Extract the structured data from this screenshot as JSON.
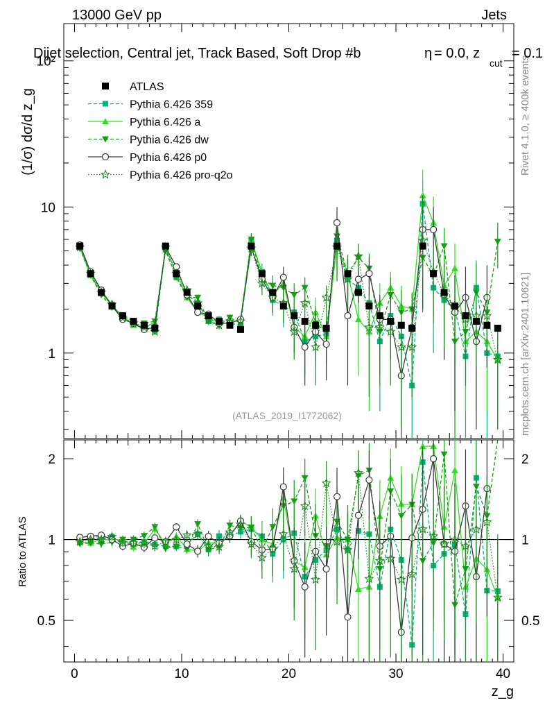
{
  "header": {
    "left": "13000 GeV pp",
    "right": "Jets",
    "selection": "Dijet selection, Central jet, Track Based, Soft Drop #b",
    "eta_part": "= 0.0, z",
    "cut_sub": "cut",
    "cut_value": "= 0.1",
    "beta_symbol": "η"
  },
  "side_labels": {
    "rivet": "Rivet 4.1.0, ≥ 400k events",
    "mcplots": "mcplots.cern.ch [arXiv:2401.10621]"
  },
  "watermark": "(ATLAS_2019_I1772062)",
  "colors": {
    "atlas": "#000000",
    "p359": "#00b37a",
    "a": "#33dd22",
    "dw": "#11a011",
    "p0": "#3a3a3a",
    "proq2o": "#1f8a1f"
  },
  "chart_data": {
    "type": "line",
    "title": "Dijet selection, Central jet, Track Based, Soft Drop #b = 0.0, z_cut = 0.1",
    "xlabel": "z_g",
    "ylabel": "(1/σ) dσ/d z_g",
    "ratio_ylabel": "Ratio to ATLAS",
    "xlim": [
      -1,
      41
    ],
    "main_ylim": [
      0.26,
      180
    ],
    "main_yscale": "log",
    "ratio_ylim": [
      0.35,
      2.35
    ],
    "ratio_yscale": "log",
    "x_ticks": [
      0,
      10,
      20,
      30,
      40
    ],
    "x_tick_labels": [
      "0",
      "10",
      "20",
      "30",
      "40"
    ],
    "main_y_ticks": [
      1,
      10,
      100
    ],
    "main_y_tick_labels": [
      "1",
      "10",
      "10²"
    ],
    "ratio_y_ticks": [
      0.5,
      1,
      2
    ],
    "ratio_y_tick_labels": [
      "0.5",
      "1",
      "2"
    ],
    "x": [
      0.5,
      1.5,
      2.5,
      3.5,
      4.5,
      5.5,
      6.5,
      7.5,
      8.5,
      9.5,
      10.5,
      11.5,
      12.5,
      13.5,
      14.5,
      15.5,
      16.5,
      17.5,
      18.5,
      19.5,
      20.5,
      21.5,
      22.5,
      23.5,
      24.5,
      25.5,
      26.5,
      27.5,
      28.5,
      29.5,
      30.5,
      31.5,
      32.5,
      33.5,
      34.5,
      35.5,
      36.5,
      37.5,
      38.5,
      39.5
    ],
    "atlas": {
      "name": "ATLAS",
      "values": [
        5.4,
        3.5,
        2.6,
        2.1,
        1.8,
        1.65,
        1.55,
        1.48,
        5.4,
        3.5,
        2.6,
        2.1,
        1.8,
        1.65,
        1.55,
        1.45,
        5.4,
        3.5,
        2.6,
        2.1,
        1.8,
        1.65,
        1.55,
        1.48,
        5.4,
        3.5,
        2.6,
        2.1,
        1.8,
        1.65,
        1.55,
        1.48,
        5.4,
        3.5,
        2.6,
        2.1,
        1.8,
        1.65,
        1.55,
        1.48
      ],
      "errors": [
        0.15,
        0.1,
        0.08,
        0.06,
        0.05,
        0.05,
        0.05,
        0.05,
        0.15,
        0.1,
        0.08,
        0.06,
        0.05,
        0.05,
        0.05,
        0.05,
        0.2,
        0.12,
        0.09,
        0.07,
        0.06,
        0.06,
        0.06,
        0.06,
        0.25,
        0.14,
        0.1,
        0.08,
        0.07,
        0.07,
        0.07,
        0.07,
        0.3,
        0.16,
        0.12,
        0.1,
        0.08,
        0.08,
        0.08,
        0.08
      ]
    },
    "series": [
      {
        "key": "p359",
        "name": "Pythia 6.426 359",
        "linestyle": "dashed",
        "marker": "square",
        "values": [
          5.5,
          3.6,
          2.65,
          2.15,
          1.75,
          1.6,
          1.52,
          1.42,
          5.1,
          3.3,
          2.5,
          2.2,
          1.65,
          1.7,
          1.6,
          1.55,
          5.9,
          3.6,
          2.3,
          2.1,
          1.9,
          1.2,
          1.3,
          1.35,
          5.9,
          3.2,
          2.8,
          2.2,
          1.2,
          1.8,
          1.3,
          0.6,
          10.5,
          2.8,
          2.3,
          2.0,
          0.95,
          2.8,
          1.0,
          0.95
        ],
        "errors": [
          0.12,
          0.1,
          0.08,
          0.07,
          0.06,
          0.06,
          0.06,
          0.06,
          0.15,
          0.12,
          0.1,
          0.1,
          0.09,
          0.09,
          0.09,
          0.09,
          0.6,
          0.5,
          0.5,
          0.6,
          0.5,
          0.5,
          0.5,
          0.5,
          2.2,
          1.2,
          1.0,
          1.0,
          0.8,
          0.8,
          0.8,
          0.6,
          5.0,
          1.8,
          1.4,
          1.2,
          0.8,
          1.5,
          0.8,
          0.6
        ]
      },
      {
        "key": "a",
        "name": "Pythia 6.426 a",
        "linestyle": "solid",
        "marker": "triangle-up",
        "values": [
          5.3,
          3.4,
          2.6,
          2.1,
          1.8,
          1.55,
          1.5,
          1.62,
          5.2,
          3.6,
          2.4,
          1.9,
          1.75,
          1.6,
          1.6,
          1.7,
          6.0,
          3.5,
          2.5,
          3.0,
          1.5,
          1.3,
          1.9,
          1.3,
          5.5,
          3.5,
          1.7,
          1.4,
          2.2,
          2.8,
          2.1,
          2.0,
          12.0,
          7.8,
          2.9,
          3.8,
          1.2,
          1.4,
          1.2,
          0.9
        ],
        "errors": [
          0.12,
          0.1,
          0.08,
          0.07,
          0.06,
          0.06,
          0.06,
          0.06,
          0.15,
          0.12,
          0.1,
          0.1,
          0.09,
          0.09,
          0.09,
          0.09,
          0.6,
          0.5,
          0.5,
          0.6,
          0.5,
          0.5,
          0.5,
          0.5,
          2.2,
          1.2,
          1.0,
          1.0,
          0.8,
          0.8,
          0.8,
          0.6,
          6.0,
          4.0,
          1.6,
          1.8,
          0.8,
          1.0,
          0.8,
          0.6
        ]
      },
      {
        "key": "dw",
        "name": "Pythia 6.426 dw",
        "linestyle": "dashed",
        "marker": "triangle-down",
        "values": [
          5.2,
          3.4,
          2.5,
          2.05,
          1.8,
          1.65,
          1.6,
          1.65,
          5.0,
          3.3,
          2.4,
          2.4,
          1.65,
          1.55,
          1.75,
          1.6,
          6.0,
          3.2,
          2.9,
          2.8,
          2.5,
          2.8,
          1.6,
          1.4,
          6.3,
          3.5,
          4.5,
          3.8,
          1.4,
          2.5,
          1.9,
          2.0,
          4.5,
          3.4,
          5.4,
          1.2,
          1.4,
          2.6,
          1.9,
          5.8
        ],
        "errors": [
          0.12,
          0.1,
          0.08,
          0.07,
          0.06,
          0.06,
          0.06,
          0.06,
          0.15,
          0.12,
          0.1,
          0.1,
          0.09,
          0.09,
          0.09,
          0.09,
          0.6,
          0.5,
          0.5,
          0.6,
          0.5,
          0.5,
          0.5,
          0.5,
          2.2,
          1.2,
          1.0,
          1.0,
          0.8,
          0.8,
          0.8,
          0.6,
          2.6,
          1.8,
          1.8,
          1.2,
          0.8,
          1.5,
          0.8,
          2.0
        ]
      },
      {
        "key": "p0",
        "name": "Pythia 6.426 p0",
        "linestyle": "solid",
        "marker": "circle-open",
        "values": [
          5.5,
          3.6,
          2.7,
          2.1,
          1.7,
          1.6,
          1.45,
          1.5,
          5.3,
          3.9,
          2.5,
          1.9,
          1.85,
          1.6,
          1.6,
          1.7,
          5.3,
          3.2,
          2.4,
          3.3,
          1.5,
          1.1,
          1.4,
          1.15,
          7.8,
          1.8,
          3.2,
          3.5,
          1.7,
          1.7,
          0.7,
          1.5,
          7.0,
          7.0,
          2.5,
          1.9,
          2.4,
          1.2,
          2.4,
          0.0
        ],
        "errors": [
          0.12,
          0.1,
          0.08,
          0.07,
          0.06,
          0.06,
          0.06,
          0.06,
          0.15,
          0.12,
          0.1,
          0.1,
          0.09,
          0.09,
          0.09,
          0.09,
          0.6,
          0.5,
          0.5,
          0.6,
          0.5,
          0.5,
          0.5,
          0.5,
          2.2,
          1.2,
          1.0,
          1.0,
          0.8,
          0.8,
          0.8,
          0.6,
          5.0,
          3.0,
          1.6,
          1.5,
          1.5,
          0.9,
          1.6,
          0.0
        ]
      },
      {
        "key": "proq2o",
        "name": "Pythia 6.426 pro-q2o",
        "linestyle": "dotted",
        "marker": "star-open",
        "values": [
          5.3,
          3.5,
          2.6,
          2.15,
          1.75,
          1.6,
          1.5,
          1.4,
          5.3,
          3.5,
          2.7,
          2.2,
          1.7,
          1.55,
          1.65,
          1.65,
          5.2,
          3.0,
          2.4,
          2.2,
          1.4,
          2.2,
          1.1,
          2.4,
          5.3,
          3.2,
          4.6,
          1.5,
          1.5,
          1.4,
          1.1,
          1.1,
          5.9,
          3.6,
          2.5,
          2.1,
          1.7,
          1.8,
          1.8,
          0.9
        ],
        "errors": [
          0.12,
          0.1,
          0.08,
          0.07,
          0.06,
          0.06,
          0.06,
          0.06,
          0.15,
          0.12,
          0.1,
          0.1,
          0.09,
          0.09,
          0.09,
          0.09,
          0.6,
          0.5,
          0.5,
          0.6,
          0.5,
          0.5,
          0.5,
          0.5,
          2.2,
          1.2,
          1.0,
          1.0,
          0.8,
          0.8,
          0.8,
          0.6,
          2.6,
          1.8,
          1.4,
          1.2,
          0.8,
          1.0,
          0.8,
          0.6
        ]
      }
    ]
  }
}
